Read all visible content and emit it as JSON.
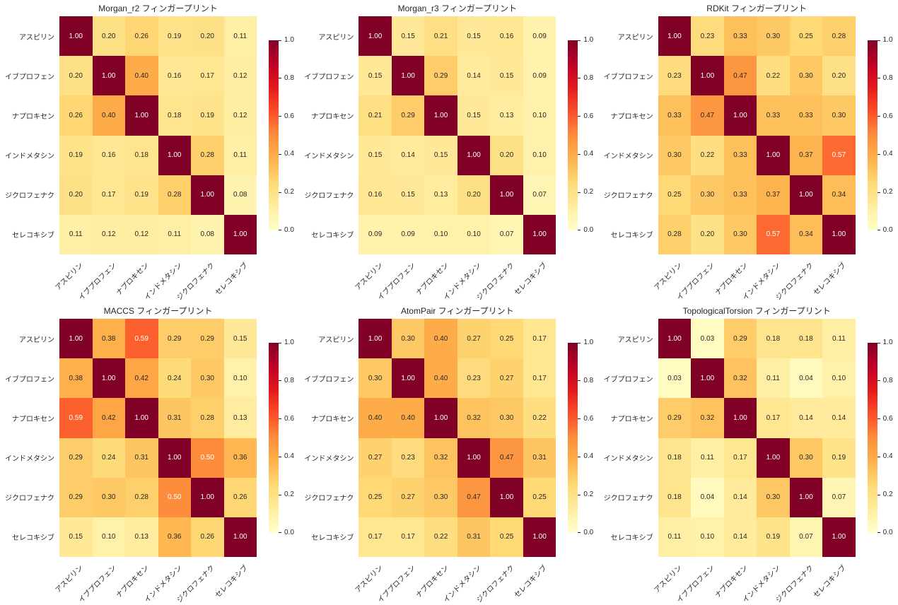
{
  "figure": {
    "background": "#ffffff",
    "text_color": "#262626",
    "annot_dark_color": "#262626",
    "annot_light_color": "#ffffff"
  },
  "axis_labels": [
    "アスピリン",
    "イブプロフェン",
    "ナプロキセン",
    "インドメタシン",
    "ジクロフェナク",
    "セレコキシブ"
  ],
  "colorbar": {
    "tick_labels": [
      "1.0",
      "0.8",
      "0.6",
      "0.4",
      "0.2",
      "0.0"
    ],
    "tick_values": [
      1.0,
      0.8,
      0.6,
      0.4,
      0.2,
      0.0
    ]
  },
  "colormap": {
    "name": "YlOrRd",
    "vmin": 0.0,
    "vmax": 1.0,
    "stops": [
      [
        0.0,
        "#ffffcc"
      ],
      [
        0.125,
        "#ffeda0"
      ],
      [
        0.25,
        "#fed976"
      ],
      [
        0.375,
        "#feb24c"
      ],
      [
        0.5,
        "#fd8d3c"
      ],
      [
        0.625,
        "#fc4e2a"
      ],
      [
        0.75,
        "#e31a1c"
      ],
      [
        0.875,
        "#bd0026"
      ],
      [
        1.0,
        "#800026"
      ]
    ]
  },
  "chart_data": [
    {
      "type": "heatmap",
      "title": "Morgan_r2 フィンガープリント",
      "categories": [
        "アスピリン",
        "イブプロフェン",
        "ナプロキセン",
        "インドメタシン",
        "ジクロフェナク",
        "セレコキシブ"
      ],
      "matrix": [
        [
          1.0,
          0.2,
          0.26,
          0.19,
          0.2,
          0.11
        ],
        [
          0.2,
          1.0,
          0.4,
          0.16,
          0.17,
          0.12
        ],
        [
          0.26,
          0.4,
          1.0,
          0.18,
          0.19,
          0.12
        ],
        [
          0.19,
          0.16,
          0.18,
          1.0,
          0.28,
          0.11
        ],
        [
          0.2,
          0.17,
          0.19,
          0.28,
          1.0,
          0.08
        ],
        [
          0.11,
          0.12,
          0.12,
          0.11,
          0.08,
          1.0
        ]
      ],
      "value_range": [
        0.0,
        1.0
      ],
      "legend_position": "right"
    },
    {
      "type": "heatmap",
      "title": "Morgan_r3 フィンガープリント",
      "categories": [
        "アスピリン",
        "イブプロフェン",
        "ナプロキセン",
        "インドメタシン",
        "ジクロフェナク",
        "セレコキシブ"
      ],
      "matrix": [
        [
          1.0,
          0.15,
          0.21,
          0.15,
          0.16,
          0.09
        ],
        [
          0.15,
          1.0,
          0.29,
          0.14,
          0.15,
          0.09
        ],
        [
          0.21,
          0.29,
          1.0,
          0.15,
          0.13,
          0.1
        ],
        [
          0.15,
          0.14,
          0.15,
          1.0,
          0.2,
          0.1
        ],
        [
          0.16,
          0.15,
          0.13,
          0.2,
          1.0,
          0.07
        ],
        [
          0.09,
          0.09,
          0.1,
          0.1,
          0.07,
          1.0
        ]
      ],
      "value_range": [
        0.0,
        1.0
      ],
      "legend_position": "right"
    },
    {
      "type": "heatmap",
      "title": "RDKit フィンガープリント",
      "categories": [
        "アスピリン",
        "イブプロフェン",
        "ナプロキセン",
        "インドメタシン",
        "ジクロフェナク",
        "セレコキシブ"
      ],
      "matrix": [
        [
          1.0,
          0.23,
          0.33,
          0.3,
          0.25,
          0.28
        ],
        [
          0.23,
          1.0,
          0.47,
          0.22,
          0.3,
          0.2
        ],
        [
          0.33,
          0.47,
          1.0,
          0.33,
          0.33,
          0.3
        ],
        [
          0.3,
          0.22,
          0.33,
          1.0,
          0.37,
          0.57
        ],
        [
          0.25,
          0.3,
          0.33,
          0.37,
          1.0,
          0.34
        ],
        [
          0.28,
          0.2,
          0.3,
          0.57,
          0.34,
          1.0
        ]
      ],
      "value_range": [
        0.0,
        1.0
      ],
      "legend_position": "right"
    },
    {
      "type": "heatmap",
      "title": "MACCS フィンガープリント",
      "categories": [
        "アスピリン",
        "イブプロフェン",
        "ナプロキセン",
        "インドメタシン",
        "ジクロフェナク",
        "セレコキシブ"
      ],
      "matrix": [
        [
          1.0,
          0.38,
          0.59,
          0.29,
          0.29,
          0.15
        ],
        [
          0.38,
          1.0,
          0.42,
          0.24,
          0.3,
          0.1
        ],
        [
          0.59,
          0.42,
          1.0,
          0.31,
          0.28,
          0.13
        ],
        [
          0.29,
          0.24,
          0.31,
          1.0,
          0.5,
          0.36
        ],
        [
          0.29,
          0.3,
          0.28,
          0.5,
          1.0,
          0.26
        ],
        [
          0.15,
          0.1,
          0.13,
          0.36,
          0.26,
          1.0
        ]
      ],
      "value_range": [
        0.0,
        1.0
      ],
      "legend_position": "right"
    },
    {
      "type": "heatmap",
      "title": "AtomPair フィンガープリント",
      "categories": [
        "アスピリン",
        "イブプロフェン",
        "ナプロキセン",
        "インドメタシン",
        "ジクロフェナク",
        "セレコキシブ"
      ],
      "matrix": [
        [
          1.0,
          0.3,
          0.4,
          0.27,
          0.25,
          0.17
        ],
        [
          0.3,
          1.0,
          0.4,
          0.23,
          0.27,
          0.17
        ],
        [
          0.4,
          0.4,
          1.0,
          0.32,
          0.3,
          0.22
        ],
        [
          0.27,
          0.23,
          0.32,
          1.0,
          0.47,
          0.31
        ],
        [
          0.25,
          0.27,
          0.3,
          0.47,
          1.0,
          0.25
        ],
        [
          0.17,
          0.17,
          0.22,
          0.31,
          0.25,
          1.0
        ]
      ],
      "value_range": [
        0.0,
        1.0
      ],
      "legend_position": "right"
    },
    {
      "type": "heatmap",
      "title": "TopologicalTorsion フィンガープリント",
      "categories": [
        "アスピリン",
        "イブプロフェン",
        "ナプロキセン",
        "インドメタシン",
        "ジクロフェナク",
        "セレコキシブ"
      ],
      "matrix": [
        [
          1.0,
          0.03,
          0.29,
          0.18,
          0.18,
          0.11
        ],
        [
          0.03,
          1.0,
          0.32,
          0.11,
          0.04,
          0.1
        ],
        [
          0.29,
          0.32,
          1.0,
          0.17,
          0.14,
          0.14
        ],
        [
          0.18,
          0.11,
          0.17,
          1.0,
          0.3,
          0.19
        ],
        [
          0.18,
          0.04,
          0.14,
          0.3,
          1.0,
          0.07
        ],
        [
          0.11,
          0.1,
          0.14,
          0.19,
          0.07,
          1.0
        ]
      ],
      "value_range": [
        0.0,
        1.0
      ],
      "legend_position": "right"
    }
  ]
}
